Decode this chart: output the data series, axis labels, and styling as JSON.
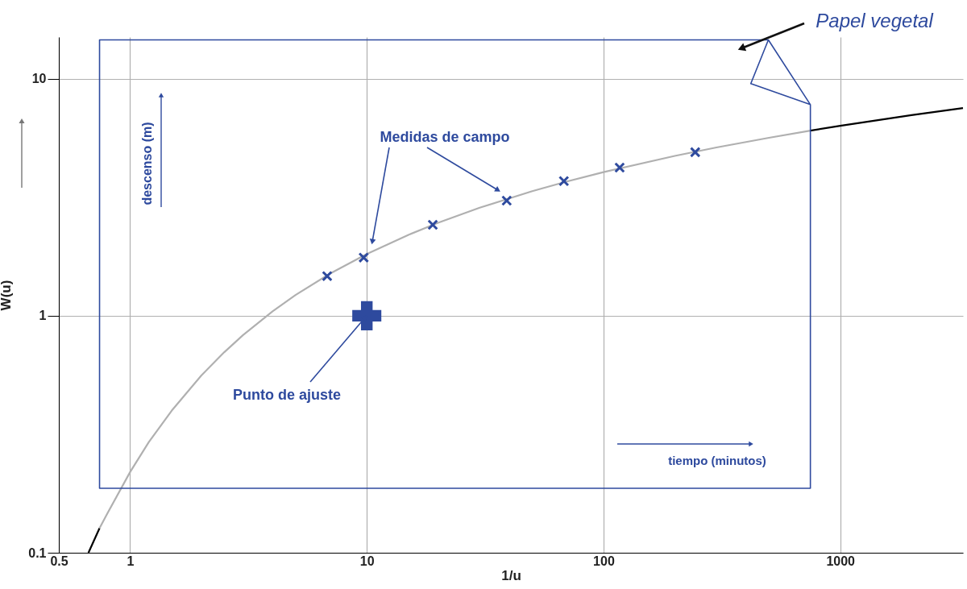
{
  "chart_data": {
    "type": "line",
    "xlabel": "1/u",
    "ylabel": "W(u)",
    "log": "xy",
    "xlim": [
      0.5,
      3300
    ],
    "ylim": [
      0.1,
      15
    ],
    "xticks": [
      0.5,
      1,
      10,
      100,
      1000
    ],
    "yticks": [
      0.1,
      1,
      10
    ],
    "grid": true,
    "series": [
      {
        "color": "#000000",
        "x": [
          0.667,
          0.743
        ],
        "values": [
          0.1,
          0.127
        ]
      },
      {
        "color": "#b0b0b0",
        "x": [
          0.743,
          0.8,
          1,
          1.2,
          1.5,
          2,
          2.5,
          3,
          4,
          5,
          7,
          10,
          15,
          20,
          30,
          50,
          70,
          100,
          200,
          300,
          500,
          748
        ],
        "values": [
          0.127,
          0.146,
          0.219,
          0.293,
          0.398,
          0.56,
          0.702,
          0.829,
          1.044,
          1.223,
          1.507,
          1.823,
          2.196,
          2.468,
          2.857,
          3.355,
          3.685,
          4.038,
          4.726,
          5.13,
          5.639,
          6.041
        ]
      },
      {
        "color": "#000000",
        "x": [
          748,
          1000,
          2000,
          3300
        ],
        "values": [
          6.041,
          6.332,
          7.024,
          7.52
        ]
      },
      {
        "type": "scatter",
        "marker": "x",
        "color": "#2e4a9e",
        "x": [
          6.8,
          9.7,
          19,
          39,
          68,
          117,
          244
        ],
        "values": [
          1.47,
          1.76,
          2.42,
          3.06,
          3.7,
          4.22,
          4.9
        ]
      },
      {
        "type": "scatter",
        "marker": "cross",
        "color": "#2e4a9e",
        "x": [
          10
        ],
        "values": [
          1
        ]
      },
      {
        "name": "Papel vegetal",
        "color": "#2e4a9e",
        "x": [
          748,
          419,
          497,
          0.743,
          0.743,
          748,
          748,
          497
        ],
        "values": [
          7.78,
          9.54,
          14.6,
          14.6,
          0.187,
          0.187,
          7.78,
          14.6
        ]
      }
    ],
    "annotations": [
      "Medidas de campo",
      {
        "text": "Punto de ajuste",
        "x": 10,
        "y": 1
      },
      "descenso (m)",
      "tiempo (minutos)"
    ]
  }
}
